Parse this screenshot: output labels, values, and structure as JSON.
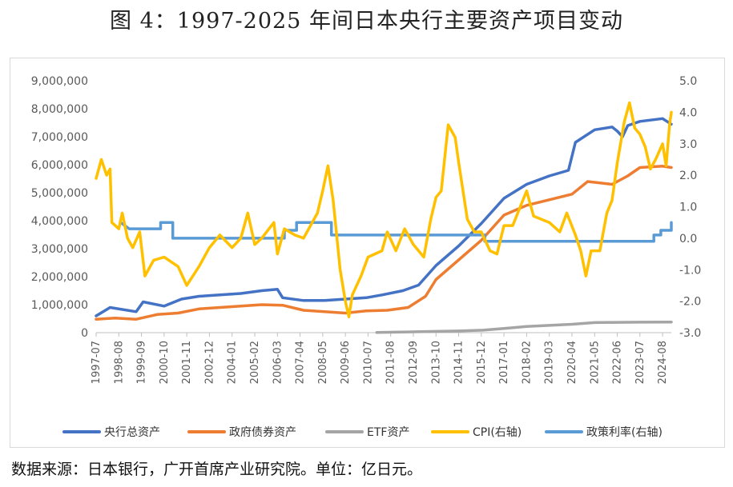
{
  "title": "图 4：1997-2025 年间日本央行主要资产项目变动",
  "source": "数据来源：日本银行，广开首席产业研究院。单位：亿日元。",
  "chart_data": {
    "type": "line",
    "title": "图 4：1997-2025 年间日本央行主要资产项目变动",
    "y_left": {
      "lim": [
        0,
        9000000
      ],
      "ticks": [
        0,
        1000000,
        2000000,
        3000000,
        4000000,
        5000000,
        6000000,
        7000000,
        8000000,
        9000000
      ],
      "tick_labels": [
        "0",
        "1,000,000",
        "2,000,000",
        "3,000,000",
        "4,000,000",
        "5,000,000",
        "6,000,000",
        "7,000,000",
        "8,000,000",
        "9,000,000"
      ]
    },
    "y_right": {
      "lim": [
        -3.0,
        5.0
      ],
      "ticks": [
        -3.0,
        -2.0,
        -1.0,
        0.0,
        1.0,
        2.0,
        3.0,
        4.0,
        5.0
      ],
      "tick_labels": [
        "-3.0",
        "-2.0",
        "-1.0",
        "0.0",
        "1.0",
        "2.0",
        "3.0",
        "4.0",
        "5.0"
      ]
    },
    "x_ticks": [
      "1997-07",
      "1998-08",
      "1999-09",
      "2000-10",
      "2001-11",
      "2002-12",
      "2004-01",
      "2005-02",
      "2006-03",
      "2007-04",
      "2008-05",
      "2009-06",
      "2010-07",
      "2011-08",
      "2012-09",
      "2013-10",
      "2014-11",
      "2015-12",
      "2017-01",
      "2018-02",
      "2019-03",
      "2020-04",
      "2021-05",
      "2022-06",
      "2023-07",
      "2024-08"
    ],
    "grid": false,
    "legend_position": "bottom",
    "series": [
      {
        "name": "央行总资产",
        "axis": "left",
        "color": "#4472C4",
        "points": [
          [
            "1997-07",
            600000
          ],
          [
            "1998-03",
            900000
          ],
          [
            "1999-06",
            750000
          ],
          [
            "1999-10",
            1100000
          ],
          [
            "2000-10",
            950000
          ],
          [
            "2001-08",
            1200000
          ],
          [
            "2002-06",
            1300000
          ],
          [
            "2003-06",
            1350000
          ],
          [
            "2004-06",
            1400000
          ],
          [
            "2005-06",
            1500000
          ],
          [
            "2006-03",
            1550000
          ],
          [
            "2006-06",
            1250000
          ],
          [
            "2007-06",
            1150000
          ],
          [
            "2008-06",
            1150000
          ],
          [
            "2009-06",
            1200000
          ],
          [
            "2010-06",
            1250000
          ],
          [
            "2011-03",
            1350000
          ],
          [
            "2012-03",
            1500000
          ],
          [
            "2012-12",
            1700000
          ],
          [
            "2013-10",
            2400000
          ],
          [
            "2014-11",
            3100000
          ],
          [
            "2015-12",
            3900000
          ],
          [
            "2017-01",
            4800000
          ],
          [
            "2018-02",
            5300000
          ],
          [
            "2019-03",
            5600000
          ],
          [
            "2020-02",
            5800000
          ],
          [
            "2020-06",
            6800000
          ],
          [
            "2021-05",
            7250000
          ],
          [
            "2022-03",
            7350000
          ],
          [
            "2022-06",
            7200000
          ],
          [
            "2022-09",
            7000000
          ],
          [
            "2022-12",
            7400000
          ],
          [
            "2023-07",
            7550000
          ],
          [
            "2024-08",
            7650000
          ],
          [
            "2025-01",
            7450000
          ]
        ]
      },
      {
        "name": "政府债券资产",
        "axis": "left",
        "color": "#ED7D31",
        "points": [
          [
            "1997-07",
            480000
          ],
          [
            "1998-06",
            520000
          ],
          [
            "1999-06",
            480000
          ],
          [
            "2000-06",
            650000
          ],
          [
            "2001-06",
            700000
          ],
          [
            "2002-06",
            850000
          ],
          [
            "2003-06",
            900000
          ],
          [
            "2004-06",
            950000
          ],
          [
            "2005-06",
            1000000
          ],
          [
            "2006-06",
            980000
          ],
          [
            "2007-06",
            800000
          ],
          [
            "2008-06",
            750000
          ],
          [
            "2009-06",
            700000
          ],
          [
            "2010-06",
            780000
          ],
          [
            "2011-06",
            800000
          ],
          [
            "2012-06",
            900000
          ],
          [
            "2013-04",
            1300000
          ],
          [
            "2013-10",
            1900000
          ],
          [
            "2014-11",
            2600000
          ],
          [
            "2015-12",
            3300000
          ],
          [
            "2017-01",
            4200000
          ],
          [
            "2018-02",
            4550000
          ],
          [
            "2019-03",
            4750000
          ],
          [
            "2020-04",
            4950000
          ],
          [
            "2021-01",
            5400000
          ],
          [
            "2022-03",
            5300000
          ],
          [
            "2022-12",
            5600000
          ],
          [
            "2023-07",
            5900000
          ],
          [
            "2024-08",
            5950000
          ],
          [
            "2025-01",
            5900000
          ]
        ]
      },
      {
        "name": "ETF资产",
        "axis": "left",
        "color": "#A5A5A5",
        "points": [
          [
            "2010-12",
            5000
          ],
          [
            "2012-01",
            20000
          ],
          [
            "2013-04",
            40000
          ],
          [
            "2014-11",
            60000
          ],
          [
            "2016-01",
            90000
          ],
          [
            "2017-01",
            150000
          ],
          [
            "2018-02",
            220000
          ],
          [
            "2019-03",
            260000
          ],
          [
            "2020-04",
            300000
          ],
          [
            "2021-05",
            360000
          ],
          [
            "2022-06",
            370000
          ],
          [
            "2023-07",
            375000
          ],
          [
            "2025-01",
            380000
          ]
        ]
      },
      {
        "name": "CPI(右轴)",
        "axis": "right",
        "color": "#FFC000",
        "points": [
          [
            "1997-07",
            1.9
          ],
          [
            "1997-10",
            2.5
          ],
          [
            "1998-01",
            2.0
          ],
          [
            "1998-03",
            2.2
          ],
          [
            "1998-04",
            0.5
          ],
          [
            "1998-08",
            0.3
          ],
          [
            "1998-10",
            0.8
          ],
          [
            "1999-01",
            0.0
          ],
          [
            "1999-04",
            -0.3
          ],
          [
            "1999-08",
            0.2
          ],
          [
            "1999-11",
            -1.2
          ],
          [
            "2000-04",
            -0.7
          ],
          [
            "2000-10",
            -0.6
          ],
          [
            "2001-06",
            -0.9
          ],
          [
            "2001-11",
            -1.5
          ],
          [
            "2002-06",
            -0.9
          ],
          [
            "2002-12",
            -0.3
          ],
          [
            "2003-06",
            0.1
          ],
          [
            "2004-01",
            -0.3
          ],
          [
            "2004-06",
            0.0
          ],
          [
            "2004-10",
            0.8
          ],
          [
            "2005-02",
            -0.2
          ],
          [
            "2005-06",
            0.0
          ],
          [
            "2006-01",
            0.5
          ],
          [
            "2006-03",
            -0.5
          ],
          [
            "2006-07",
            0.3
          ],
          [
            "2007-01",
            0.1
          ],
          [
            "2007-06",
            0.0
          ],
          [
            "2007-10",
            0.4
          ],
          [
            "2008-02",
            0.8
          ],
          [
            "2008-05",
            1.5
          ],
          [
            "2008-08",
            2.3
          ],
          [
            "2008-11",
            1.2
          ],
          [
            "2009-03",
            -1.0
          ],
          [
            "2009-06",
            -2.0
          ],
          [
            "2009-08",
            -2.5
          ],
          [
            "2009-10",
            -1.8
          ],
          [
            "2010-03",
            -1.2
          ],
          [
            "2010-07",
            -0.6
          ],
          [
            "2011-03",
            -0.4
          ],
          [
            "2011-06",
            0.2
          ],
          [
            "2011-11",
            -0.4
          ],
          [
            "2012-04",
            0.3
          ],
          [
            "2012-09",
            -0.2
          ],
          [
            "2013-03",
            -0.6
          ],
          [
            "2013-07",
            0.6
          ],
          [
            "2013-10",
            1.3
          ],
          [
            "2014-01",
            1.5
          ],
          [
            "2014-05",
            3.6
          ],
          [
            "2014-09",
            3.2
          ],
          [
            "2014-11",
            2.4
          ],
          [
            "2015-04",
            0.6
          ],
          [
            "2015-08",
            0.2
          ],
          [
            "2015-12",
            0.2
          ],
          [
            "2016-05",
            -0.4
          ],
          [
            "2016-09",
            -0.5
          ],
          [
            "2017-01",
            0.4
          ],
          [
            "2017-06",
            0.4
          ],
          [
            "2018-02",
            1.5
          ],
          [
            "2018-06",
            0.7
          ],
          [
            "2019-03",
            0.5
          ],
          [
            "2019-09",
            0.2
          ],
          [
            "2020-01",
            0.8
          ],
          [
            "2020-06",
            0.1
          ],
          [
            "2020-09",
            -0.4
          ],
          [
            "2020-12",
            -1.2
          ],
          [
            "2021-03",
            -0.4
          ],
          [
            "2021-08",
            -0.4
          ],
          [
            "2021-12",
            0.8
          ],
          [
            "2022-03",
            1.2
          ],
          [
            "2022-06",
            2.4
          ],
          [
            "2022-10",
            3.7
          ],
          [
            "2023-01",
            4.3
          ],
          [
            "2023-04",
            3.5
          ],
          [
            "2023-07",
            3.3
          ],
          [
            "2023-10",
            2.9
          ],
          [
            "2024-01",
            2.2
          ],
          [
            "2024-04",
            2.5
          ],
          [
            "2024-08",
            3.0
          ],
          [
            "2024-10",
            2.3
          ],
          [
            "2024-12",
            3.6
          ],
          [
            "2025-01",
            4.0
          ]
        ]
      },
      {
        "name": "政策利率(右轴)",
        "axis": "right",
        "color": "#5B9BD5",
        "points": [
          [
            "1998-09",
            0.5
          ],
          [
            "1999-02",
            0.3
          ],
          [
            "2000-08",
            0.3
          ],
          [
            "2000-08",
            0.5
          ],
          [
            "2001-03",
            0.5
          ],
          [
            "2001-03",
            0.0
          ],
          [
            "2006-07",
            0.0
          ],
          [
            "2006-07",
            0.25
          ],
          [
            "2007-02",
            0.25
          ],
          [
            "2007-02",
            0.5
          ],
          [
            "2008-10",
            0.5
          ],
          [
            "2008-10",
            0.1
          ],
          [
            "2016-02",
            0.1
          ],
          [
            "2016-02",
            -0.1
          ],
          [
            "2024-03",
            -0.1
          ],
          [
            "2024-03",
            0.1
          ],
          [
            "2024-07",
            0.1
          ],
          [
            "2024-07",
            0.25
          ],
          [
            "2025-01",
            0.25
          ],
          [
            "2025-01",
            0.5
          ]
        ]
      }
    ]
  }
}
